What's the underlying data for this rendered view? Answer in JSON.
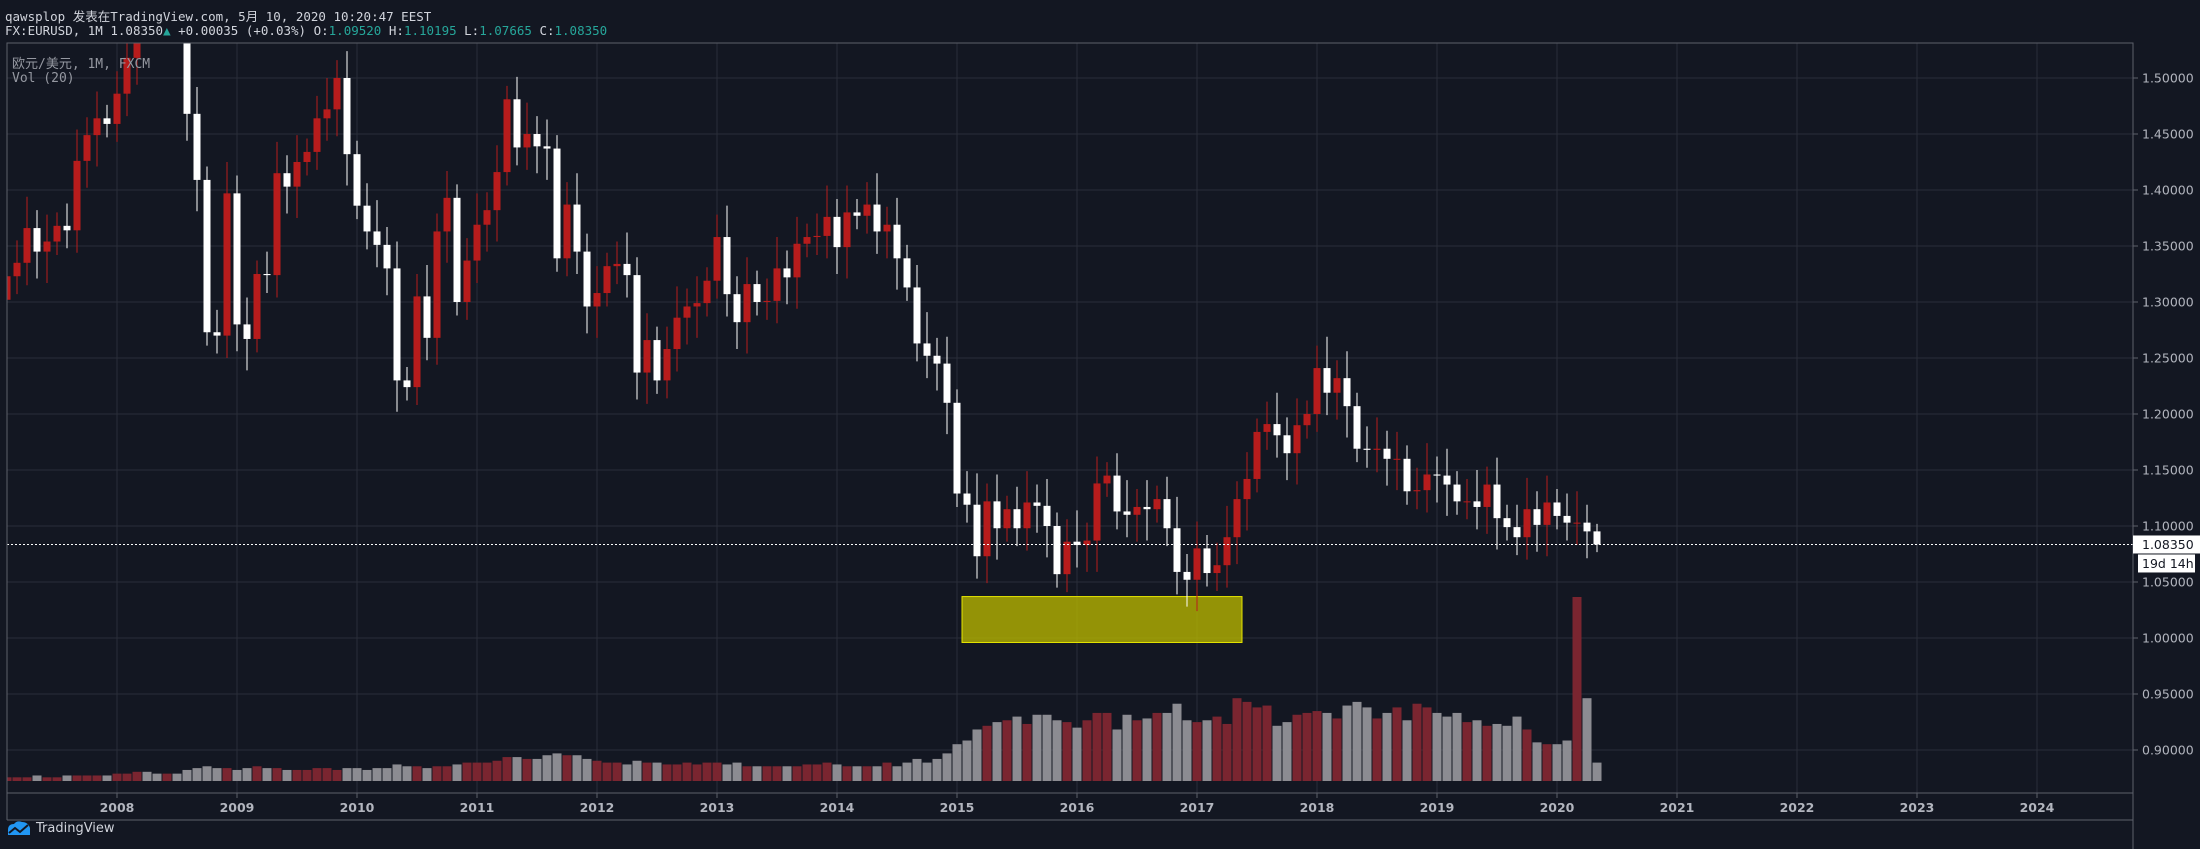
{
  "header": {
    "line1": "qawsplop 发表在TradingView.com, 5月 10, 2020 10:20:47 EEST",
    "symbol": "FX:EURUSD, 1M",
    "last": "1.08350",
    "change": "+0.00035 (+0.03%)",
    "o_label": "O:",
    "o": "1.09520",
    "h_label": "H:",
    "h": "1.10195",
    "l_label": "L:",
    "l": "1.07665",
    "c_label": "C:",
    "c": "1.08350"
  },
  "legend": {
    "series": "欧元/美元, 1M, FXCM",
    "volume": "Vol (20)"
  },
  "price_tag": "1.08350",
  "countdown": "19d 14h",
  "footer": {
    "brand": "TradingView"
  },
  "colors": {
    "background": "#131722",
    "grid": "#2a2e39",
    "up": "#b71c1c",
    "down": "#ffffff",
    "vol_up": "#7a2530",
    "vol_down": "#8c8c92",
    "accent": "#26a69a",
    "box": "#b5b300"
  },
  "chart_data": {
    "type": "candlestick",
    "title": "EURUSD monthly",
    "start": "2007-02",
    "first_open": 1.302,
    "close": [
      1.323,
      1.335,
      1.366,
      1.345,
      1.354,
      1.368,
      1.364,
      1.426,
      1.449,
      1.464,
      1.459,
      1.486,
      1.518,
      1.579,
      1.561,
      1.555,
      1.575,
      1.56,
      1.468,
      1.409,
      1.273,
      1.27,
      1.397,
      1.28,
      1.267,
      1.325,
      1.324,
      1.415,
      1.403,
      1.425,
      1.434,
      1.464,
      1.472,
      1.5,
      1.432,
      1.386,
      1.363,
      1.351,
      1.33,
      1.23,
      1.224,
      1.305,
      1.268,
      1.363,
      1.393,
      1.3,
      1.337,
      1.369,
      1.382,
      1.416,
      1.481,
      1.438,
      1.45,
      1.439,
      1.437,
      1.339,
      1.387,
      1.345,
      1.296,
      1.308,
      1.332,
      1.334,
      1.324,
      1.237,
      1.266,
      1.23,
      1.258,
      1.286,
      1.296,
      1.299,
      1.319,
      1.358,
      1.307,
      1.282,
      1.316,
      1.3,
      1.301,
      1.33,
      1.322,
      1.352,
      1.358,
      1.359,
      1.376,
      1.349,
      1.38,
      1.377,
      1.387,
      1.363,
      1.369,
      1.339,
      1.313,
      1.263,
      1.252,
      1.245,
      1.21,
      1.129,
      1.119,
      1.073,
      1.122,
      1.098,
      1.115,
      1.098,
      1.121,
      1.118,
      1.1,
      1.057,
      1.086,
      1.083,
      1.087,
      1.138,
      1.145,
      1.113,
      1.11,
      1.117,
      1.115,
      1.124,
      1.098,
      1.059,
      1.052,
      1.08,
      1.058,
      1.065,
      1.09,
      1.124,
      1.142,
      1.184,
      1.191,
      1.181,
      1.165,
      1.19,
      1.2,
      1.241,
      1.219,
      1.232,
      1.207,
      1.169,
      1.168,
      1.169,
      1.16,
      1.16,
      1.131,
      1.132,
      1.146,
      1.145,
      1.137,
      1.122,
      1.122,
      1.117,
      1.137,
      1.107,
      1.099,
      1.09,
      1.115,
      1.101,
      1.121,
      1.109,
      1.103,
      1.103,
      1.0952,
      1.0835
    ],
    "volume": [
      2,
      2,
      2,
      3,
      2,
      2,
      3,
      3,
      3,
      3,
      3,
      4,
      4,
      5,
      5,
      4,
      4,
      4,
      6,
      7,
      8,
      7,
      7,
      6,
      7,
      8,
      7,
      7,
      6,
      6,
      6,
      7,
      7,
      6,
      7,
      7,
      6,
      7,
      7,
      9,
      8,
      8,
      7,
      8,
      8,
      9,
      10,
      10,
      10,
      11,
      13,
      13,
      12,
      12,
      14,
      15,
      14,
      14,
      12,
      11,
      10,
      10,
      9,
      11,
      10,
      10,
      9,
      9,
      10,
      9,
      10,
      10,
      9,
      10,
      8,
      8,
      8,
      8,
      8,
      8,
      9,
      9,
      10,
      9,
      8,
      8,
      8,
      8,
      10,
      8,
      10,
      12,
      10,
      12,
      15,
      20,
      22,
      28,
      30,
      32,
      33,
      35,
      31,
      36,
      36,
      33,
      32,
      29,
      33,
      37,
      37,
      28,
      36,
      33,
      34,
      37,
      37,
      42,
      33,
      32,
      33,
      35,
      31,
      45,
      43,
      40,
      41,
      30,
      32,
      36,
      37,
      38,
      37,
      34,
      41,
      43,
      40,
      34,
      37,
      40,
      33,
      42,
      40,
      37,
      35,
      37,
      32,
      33,
      30,
      31,
      30,
      35,
      28,
      21,
      20,
      20,
      22,
      100,
      45,
      10
    ],
    "price_ticks": [
      "0.90000",
      "0.95000",
      "1.00000",
      "1.05000",
      "1.10000",
      "1.15000",
      "1.20000",
      "1.25000",
      "1.30000",
      "1.35000",
      "1.40000",
      "1.45000",
      "1.50000"
    ],
    "year_ticks": [
      "2008",
      "2009",
      "2010",
      "2011",
      "2012",
      "2013",
      "2014",
      "2015",
      "2016",
      "2017",
      "2018",
      "2019",
      "2020",
      "2021",
      "2022",
      "2023",
      "2024"
    ],
    "ylim": [
      0.88,
      1.53
    ],
    "last_price": 1.0835,
    "highlight_box": {
      "from": "2015-02",
      "to": "2017-05",
      "price_low": 0.996,
      "price_high": 1.037
    }
  }
}
